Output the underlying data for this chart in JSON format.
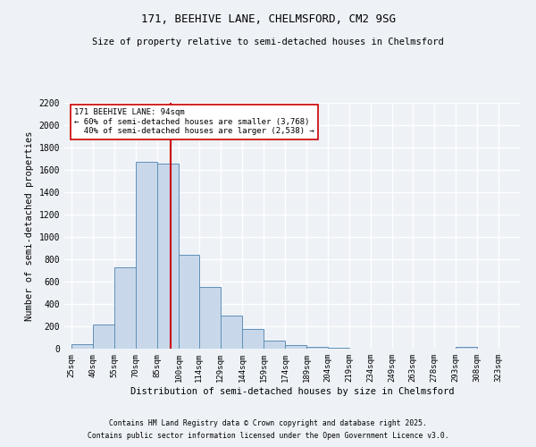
{
  "title1": "171, BEEHIVE LANE, CHELMSFORD, CM2 9SG",
  "title2": "Size of property relative to semi-detached houses in Chelmsford",
  "xlabel": "Distribution of semi-detached houses by size in Chelmsford",
  "ylabel": "Number of semi-detached properties",
  "bin_labels": [
    "25sqm",
    "40sqm",
    "55sqm",
    "70sqm",
    "85sqm",
    "100sqm",
    "114sqm",
    "129sqm",
    "144sqm",
    "159sqm",
    "174sqm",
    "189sqm",
    "204sqm",
    "219sqm",
    "234sqm",
    "249sqm",
    "263sqm",
    "278sqm",
    "293sqm",
    "308sqm",
    "323sqm"
  ],
  "bin_edges": [
    25,
    40,
    55,
    70,
    85,
    100,
    114,
    129,
    144,
    159,
    174,
    189,
    204,
    219,
    234,
    249,
    263,
    278,
    293,
    308,
    323,
    338
  ],
  "counts": [
    40,
    220,
    730,
    1670,
    1660,
    840,
    555,
    295,
    180,
    70,
    35,
    20,
    5,
    3,
    2,
    2,
    1,
    1,
    20,
    2,
    1
  ],
  "property_size": 94,
  "property_label": "171 BEEHIVE LANE: 94sqm",
  "smaller_pct": "60%",
  "smaller_count": "3,768",
  "larger_pct": "40%",
  "larger_count": "2,538",
  "bar_color": "#c8d8ea",
  "bar_edge_color": "#6090b8",
  "vline_color": "#cc0000",
  "ylim": [
    0,
    2200
  ],
  "yticks": [
    0,
    200,
    400,
    600,
    800,
    1000,
    1200,
    1400,
    1600,
    1800,
    2000,
    2200
  ],
  "background_color": "#eef2f7",
  "grid_color": "#ffffff",
  "footnote1": "Contains HM Land Registry data © Crown copyright and database right 2025.",
  "footnote2": "Contains public sector information licensed under the Open Government Licence v3.0."
}
